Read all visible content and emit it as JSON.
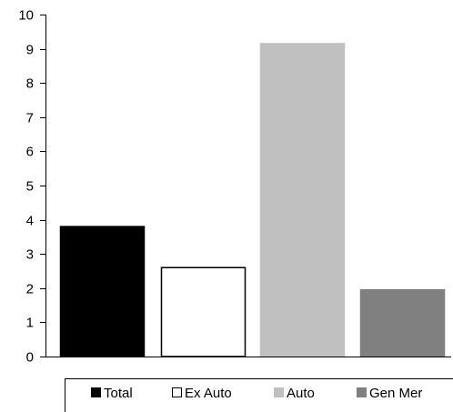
{
  "chart_data": {
    "type": "bar",
    "title": "",
    "xlabel": "",
    "ylabel": "",
    "ylim": [
      0,
      10
    ],
    "yticks": [
      0,
      1,
      2,
      3,
      4,
      5,
      6,
      7,
      8,
      9,
      10
    ],
    "grid": false,
    "legend_position": "bottom",
    "series": [
      {
        "name": "Total",
        "value": 3.8,
        "fill": "#000000",
        "stroke": "#000000"
      },
      {
        "name": "Ex Auto",
        "value": 2.6,
        "fill": "#ffffff",
        "stroke": "#000000"
      },
      {
        "name": "Auto",
        "value": 9.15,
        "fill": "#c0c0c0",
        "stroke": "#c0c0c0"
      },
      {
        "name": "Gen Mer",
        "value": 1.95,
        "fill": "#808080",
        "stroke": "#808080"
      }
    ]
  }
}
